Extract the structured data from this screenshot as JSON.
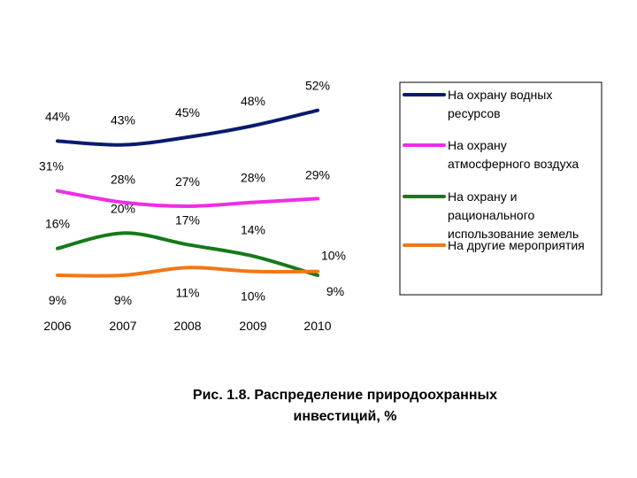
{
  "chart_data": {
    "type": "line",
    "x": [
      "2006",
      "2007",
      "2008",
      "2009",
      "2010"
    ],
    "ylim": [
      0,
      60
    ],
    "grid": false,
    "legend_position": "right",
    "series": [
      {
        "name_lines": [
          "На охрану водных",
          "ресурсов"
        ],
        "color": "#0a1a6e",
        "values": [
          44,
          43,
          45,
          48,
          52
        ],
        "labels": [
          "44%",
          "43%",
          "45%",
          "48%",
          "52%"
        ]
      },
      {
        "name_lines": [
          "На охрану",
          "атмосферного воздуха"
        ],
        "color": "#ee2ee6",
        "values": [
          31,
          28,
          27,
          28,
          29
        ],
        "labels": [
          "31%",
          "28%",
          "27%",
          "28%",
          "29%"
        ]
      },
      {
        "name_lines": [
          "На охрану и",
          "рационального",
          "использование земель"
        ],
        "color": "#157a1a",
        "values": [
          16,
          20,
          17,
          14,
          9
        ],
        "labels": [
          "16%",
          "20%",
          "17%",
          "14%",
          "9%"
        ]
      },
      {
        "name_lines": [
          "На другие мероприятия"
        ],
        "color": "#f07818",
        "values": [
          9,
          9,
          11,
          10,
          10
        ],
        "labels": [
          "9%",
          "9%",
          "11%",
          "10%",
          "10%"
        ]
      }
    ]
  },
  "caption": {
    "line1": "Рис. 1.8.  Распределение природоохранных",
    "line2": "инвестиций, %"
  }
}
